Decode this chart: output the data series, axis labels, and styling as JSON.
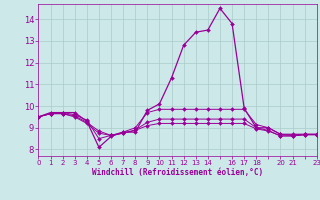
{
  "background_color": "#cce8e8",
  "line_color": "#990099",
  "grid_color": "#aacccc",
  "xlabel": "Windchill (Refroidissement éolien,°C)",
  "xlabel_color": "#990099",
  "tick_color": "#990099",
  "ylim": [
    7.7,
    14.7
  ],
  "xlim": [
    0,
    23
  ],
  "yticks": [
    8,
    9,
    10,
    11,
    12,
    13,
    14
  ],
  "xtick_positions": [
    0,
    1,
    2,
    3,
    4,
    5,
    6,
    7,
    8,
    9,
    10,
    11,
    12,
    13,
    14,
    15,
    16,
    17,
    18,
    19,
    20,
    21,
    22,
    23
  ],
  "xtick_labels": [
    "0",
    "1",
    "2",
    "3",
    "4",
    "5",
    "6",
    "7",
    "8",
    "9",
    "10",
    "11",
    "12",
    "13",
    "14",
    "",
    "16",
    "17",
    "18",
    "",
    "20",
    "21",
    "",
    "23"
  ],
  "line1_x": [
    0,
    1,
    2,
    3,
    4,
    5,
    6,
    7,
    8,
    9,
    10,
    11,
    12,
    13,
    14,
    15,
    16,
    17,
    18,
    19,
    20,
    21,
    22,
    23
  ],
  "line1_y": [
    9.5,
    9.7,
    9.7,
    9.7,
    9.3,
    8.1,
    8.6,
    8.8,
    8.8,
    9.8,
    10.1,
    11.3,
    12.8,
    13.4,
    13.5,
    14.5,
    13.8,
    9.9,
    9.0,
    9.0,
    8.7,
    8.7,
    8.7,
    8.7
  ],
  "line2_x": [
    0,
    1,
    2,
    3,
    4,
    5,
    6,
    7,
    8,
    9,
    10,
    11,
    12,
    13,
    14,
    15,
    16,
    17,
    18,
    19,
    20,
    21,
    22,
    23
  ],
  "line2_y": [
    9.5,
    9.65,
    9.7,
    9.6,
    9.35,
    8.5,
    8.65,
    8.8,
    9.0,
    9.7,
    9.85,
    9.85,
    9.85,
    9.85,
    9.85,
    9.85,
    9.85,
    9.85,
    9.15,
    9.0,
    8.7,
    8.65,
    8.7,
    8.7
  ],
  "line3_x": [
    0,
    1,
    2,
    3,
    4,
    5,
    6,
    7,
    8,
    9,
    10,
    11,
    12,
    13,
    14,
    15,
    16,
    17,
    18,
    19,
    20,
    21,
    22,
    23
  ],
  "line3_y": [
    9.5,
    9.65,
    9.65,
    9.5,
    9.2,
    8.75,
    8.65,
    8.75,
    8.9,
    9.25,
    9.4,
    9.4,
    9.4,
    9.4,
    9.4,
    9.4,
    9.4,
    9.4,
    9.0,
    8.88,
    8.62,
    8.62,
    8.68,
    8.68
  ],
  "line4_x": [
    0,
    1,
    2,
    3,
    4,
    5,
    6,
    7,
    8,
    9,
    10,
    11,
    12,
    13,
    14,
    15,
    16,
    17,
    18,
    19,
    20,
    21,
    22,
    23
  ],
  "line4_y": [
    9.5,
    9.65,
    9.65,
    9.55,
    9.25,
    8.85,
    8.65,
    8.75,
    8.88,
    9.1,
    9.2,
    9.2,
    9.2,
    9.2,
    9.2,
    9.2,
    9.2,
    9.2,
    8.95,
    8.85,
    8.63,
    8.63,
    8.68,
    8.68
  ]
}
